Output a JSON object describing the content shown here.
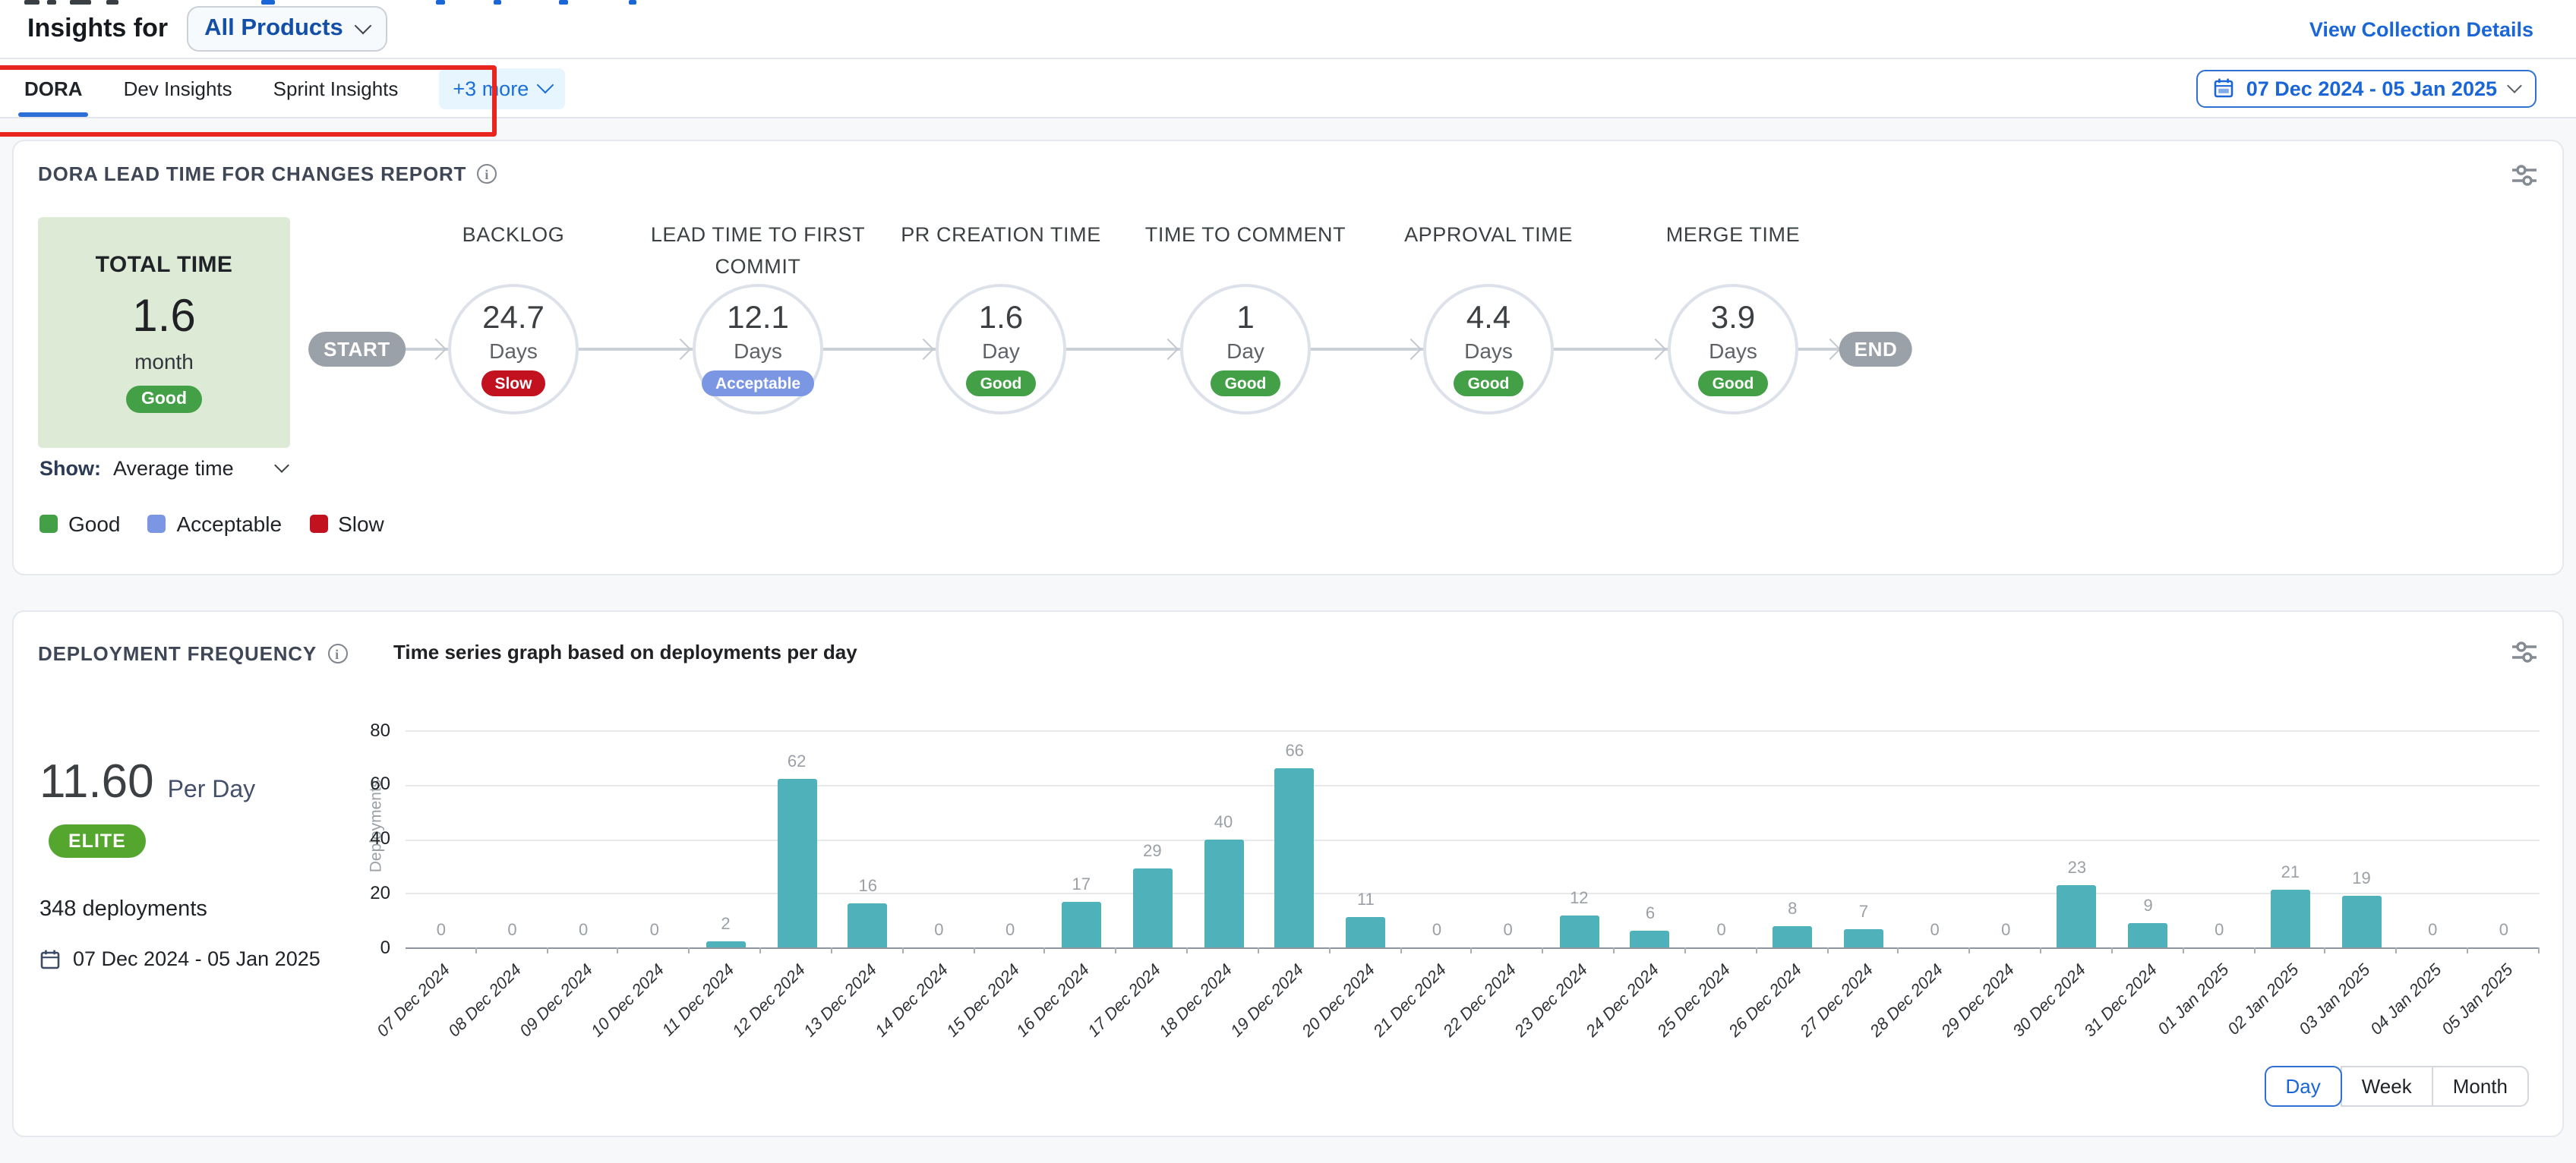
{
  "header": {
    "title": "Insights for",
    "product": "All Products",
    "link": "View Collection Details"
  },
  "tabs": {
    "items": [
      "DORA",
      "Dev Insights",
      "Sprint Insights"
    ],
    "more_label": "+3 more",
    "active": "DORA"
  },
  "date_range": "07 Dec 2024 - 05 Jan 2025",
  "status_colors": {
    "Good": "#43a047",
    "Acceptable": "#7b96e3",
    "Slow": "#c2121f"
  },
  "lead_time_card": {
    "title": "DORA LEAD TIME FOR CHANGES REPORT",
    "total": {
      "label": "TOTAL TIME",
      "value": "1.6",
      "unit": "month",
      "status": "Good"
    },
    "show_label": "Show:",
    "show_value": "Average time",
    "legend": [
      {
        "label": "Good",
        "color": "#43a047"
      },
      {
        "label": "Acceptable",
        "color": "#7b96e3"
      },
      {
        "label": "Slow",
        "color": "#c2121f"
      }
    ],
    "flow": {
      "start": "START",
      "end": "END",
      "stages": [
        {
          "name": "BACKLOG",
          "value": "24.7",
          "unit": "Days",
          "status": "Slow"
        },
        {
          "name": "LEAD TIME TO FIRST COMMIT",
          "value": "12.1",
          "unit": "Days",
          "status": "Acceptable"
        },
        {
          "name": "PR CREATION TIME",
          "value": "1.6",
          "unit": "Day",
          "status": "Good"
        },
        {
          "name": "TIME TO COMMENT",
          "value": "1",
          "unit": "Day",
          "status": "Good"
        },
        {
          "name": "APPROVAL TIME",
          "value": "4.4",
          "unit": "Days",
          "status": "Good"
        },
        {
          "name": "MERGE TIME",
          "value": "3.9",
          "unit": "Days",
          "status": "Good"
        }
      ]
    }
  },
  "deployment_card": {
    "title": "DEPLOYMENT FREQUENCY",
    "chart_title": "Time series graph based on deployments per day",
    "rate_value": "11.60",
    "rate_unit": "Per Day",
    "tier": "ELITE",
    "tier_color": "#55a62f",
    "total_label": "348 deployments",
    "date_range": "07 Dec 2024 - 05 Jan 2025",
    "granularity": [
      "Day",
      "Week",
      "Month"
    ],
    "granularity_active": "Day"
  },
  "chart_data": {
    "type": "bar",
    "title": "Time series graph based on deployments per day",
    "categories": [
      "07 Dec 2024",
      "08 Dec 2024",
      "09 Dec 2024",
      "10 Dec 2024",
      "11 Dec 2024",
      "12 Dec 2024",
      "13 Dec 2024",
      "14 Dec 2024",
      "15 Dec 2024",
      "16 Dec 2024",
      "17 Dec 2024",
      "18 Dec 2024",
      "19 Dec 2024",
      "20 Dec 2024",
      "21 Dec 2024",
      "22 Dec 2024",
      "23 Dec 2024",
      "24 Dec 2024",
      "25 Dec 2024",
      "26 Dec 2024",
      "27 Dec 2024",
      "28 Dec 2024",
      "29 Dec 2024",
      "30 Dec 2024",
      "31 Dec 2024",
      "01 Jan 2025",
      "02 Jan 2025",
      "03 Jan 2025",
      "04 Jan 2025",
      "05 Jan 2025"
    ],
    "values": [
      0,
      0,
      0,
      0,
      2,
      62,
      16,
      0,
      0,
      17,
      29,
      40,
      66,
      11,
      0,
      0,
      12,
      6,
      0,
      8,
      7,
      0,
      0,
      23,
      9,
      0,
      21,
      19,
      0,
      0
    ],
    "xlabel": "",
    "ylabel": "Deployments",
    "yticks": [
      0,
      20,
      40,
      60,
      80
    ],
    "ylim": [
      0,
      80
    ],
    "bar_color": "#4fb2ba",
    "value_label_color": "#9aa0a6",
    "grid": true,
    "x_label_rotation": -45,
    "legend_position": "none"
  }
}
